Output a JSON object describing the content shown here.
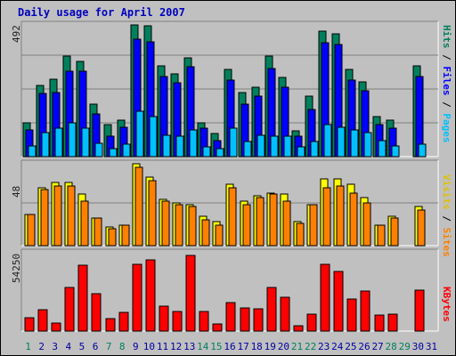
{
  "title": "Daily usage for April 2007",
  "colors": {
    "background": "#c0c0c0",
    "panel": "#c0c0c0",
    "hits": "#00805c",
    "files": "#0000ff",
    "pages": "#00c0ff",
    "visits": "#ffff00",
    "sites": "#ff8000",
    "kbytes": "#ff0000",
    "title": "#0000c0",
    "weekend_day": "#00805c",
    "weekday_day": "#0000a0"
  },
  "right_labels": {
    "pages": "Pages",
    "files": "Files",
    "hits": "Hits",
    "sites": "Sites",
    "visits": "Visits",
    "kbytes": "KBytes",
    "sep": " / "
  },
  "chart_data": [
    {
      "type": "bar",
      "name_hint": "hits-files-pages",
      "ylim": [
        0,
        492
      ],
      "ymax_label": "492",
      "categories": [
        "1",
        "2",
        "3",
        "4",
        "5",
        "6",
        "7",
        "8",
        "9",
        "10",
        "11",
        "12",
        "13",
        "14",
        "15",
        "16",
        "17",
        "18",
        "19",
        "20",
        "21",
        "22",
        "23",
        "24",
        "25",
        "26",
        "27",
        "28",
        "29",
        "30",
        "31"
      ],
      "series": [
        {
          "name": "Hits",
          "values": [
            125,
            265,
            290,
            375,
            355,
            195,
            120,
            135,
            492,
            490,
            340,
            310,
            370,
            125,
            85,
            325,
            240,
            260,
            375,
            295,
            95,
            225,
            470,
            460,
            325,
            280,
            150,
            135,
            0,
            340,
            0
          ]
        },
        {
          "name": "Files",
          "values": [
            100,
            235,
            240,
            320,
            320,
            160,
            75,
            110,
            440,
            430,
            300,
            275,
            335,
            105,
            60,
            285,
            195,
            225,
            330,
            260,
            75,
            175,
            425,
            420,
            285,
            245,
            120,
            105,
            0,
            300,
            0
          ]
        },
        {
          "name": "Pages",
          "values": [
            40,
            90,
            105,
            125,
            105,
            50,
            30,
            45,
            170,
            150,
            80,
            75,
            100,
            35,
            30,
            105,
            55,
            80,
            75,
            75,
            35,
            55,
            120,
            110,
            100,
            90,
            60,
            40,
            0,
            45,
            0
          ]
        }
      ]
    },
    {
      "type": "bar",
      "name_hint": "visits-sites",
      "ylim": [
        0,
        48
      ],
      "ymax_label": "48",
      "categories": [
        "1",
        "2",
        "3",
        "4",
        "5",
        "6",
        "7",
        "8",
        "9",
        "10",
        "11",
        "12",
        "13",
        "14",
        "15",
        "16",
        "17",
        "18",
        "19",
        "20",
        "21",
        "22",
        "23",
        "24",
        "25",
        "26",
        "27",
        "28",
        "29",
        "30",
        "31"
      ],
      "series": [
        {
          "name": "Visits",
          "values": [
            18,
            34,
            37,
            37,
            30,
            16,
            11,
            12,
            48,
            40,
            27,
            25,
            24,
            17,
            14,
            36,
            26,
            29,
            31,
            30,
            14,
            24,
            39,
            39,
            36,
            28,
            12,
            17,
            0,
            23,
            0
          ]
        },
        {
          "name": "Sites",
          "values": [
            18,
            33,
            35,
            35,
            26,
            16,
            10,
            12,
            46,
            38,
            26,
            24,
            23,
            15,
            12,
            34,
            24,
            28,
            30,
            26,
            13,
            24,
            34,
            35,
            31,
            25,
            12,
            16,
            0,
            21,
            0
          ]
        }
      ]
    },
    {
      "type": "bar",
      "name_hint": "kbytes",
      "ylim": [
        0,
        54250
      ],
      "ymax_label": "54250",
      "categories": [
        "1",
        "2",
        "3",
        "4",
        "5",
        "6",
        "7",
        "8",
        "9",
        "10",
        "11",
        "12",
        "13",
        "14",
        "15",
        "16",
        "17",
        "18",
        "19",
        "20",
        "21",
        "22",
        "23",
        "24",
        "25",
        "26",
        "27",
        "28",
        "29",
        "30",
        "31"
      ],
      "series": [
        {
          "name": "KBytes",
          "values": [
            9500,
            14500,
            5500,
            30500,
            45500,
            26000,
            8500,
            13000,
            46500,
            49500,
            17500,
            13500,
            52500,
            13500,
            5000,
            19500,
            16000,
            15500,
            30500,
            23500,
            4000,
            11500,
            46500,
            41000,
            22000,
            27500,
            11000,
            11500,
            0,
            28500,
            0
          ]
        }
      ]
    }
  ],
  "weekend_days": [
    "1",
    "7",
    "8",
    "14",
    "15",
    "21",
    "22",
    "28",
    "29"
  ]
}
